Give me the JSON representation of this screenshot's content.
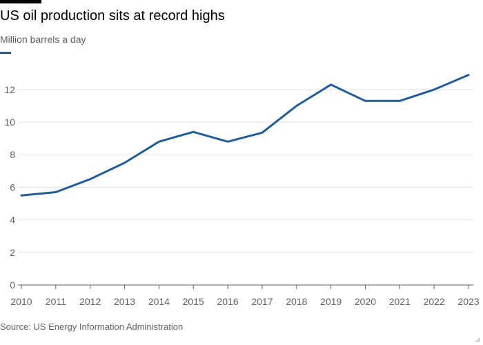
{
  "header": {
    "title": "US oil production sits at record highs",
    "subtitle": "Million barrels a day"
  },
  "footer": {
    "source": "Source: US Energy Information Administration"
  },
  "colors": {
    "line": "#1f5c99",
    "grid": "#e6e2df",
    "axis": "#66605c",
    "tick_text": "#66605c"
  },
  "chart_data": {
    "type": "line",
    "title": "US oil production sits at record highs",
    "subtitle": "Million barrels a day",
    "xlabel": "",
    "ylabel": "",
    "x": [
      "2010",
      "2011",
      "2012",
      "2013",
      "2014",
      "2015",
      "2016",
      "2017",
      "2018",
      "2019",
      "2020",
      "2021",
      "2022",
      "2023"
    ],
    "series": [
      {
        "values": [
          5.5,
          5.7,
          6.5,
          7.5,
          8.8,
          9.4,
          8.8,
          9.35,
          11.0,
          12.3,
          11.3,
          11.3,
          12.0,
          12.9
        ]
      }
    ],
    "ylim": [
      0,
      13
    ],
    "yticks": [
      0,
      2,
      4,
      6,
      8,
      10,
      12
    ],
    "grid": true,
    "legend": "top-left"
  }
}
